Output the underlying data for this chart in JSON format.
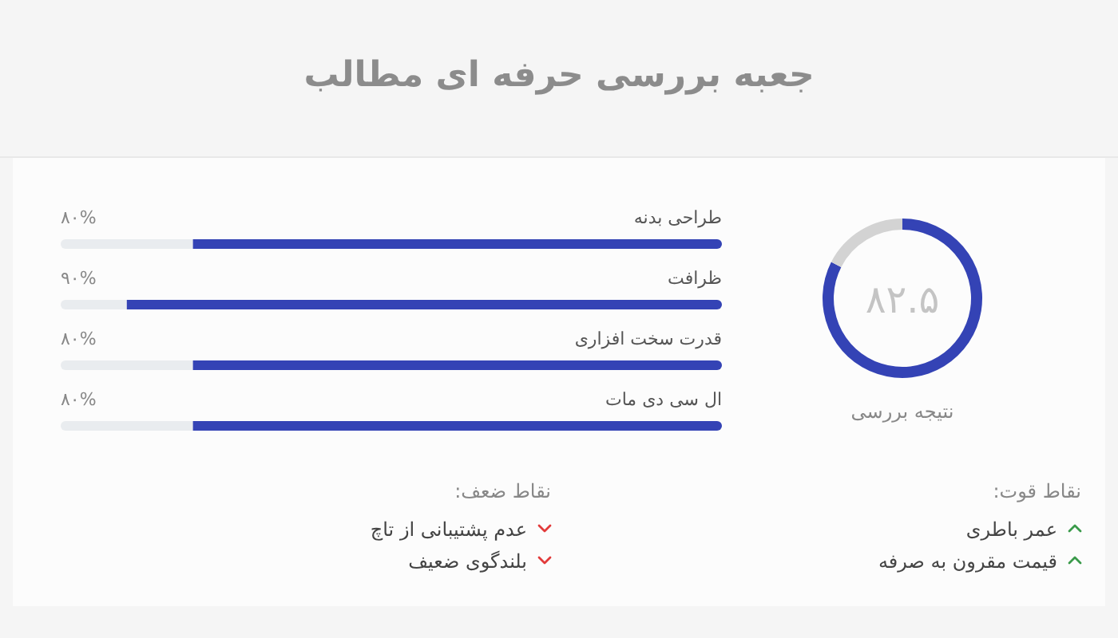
{
  "chart_data": [
    {
      "type": "bar",
      "title": "جعبه بررسی حرفه ای مطالب",
      "orientation": "horizontal",
      "categories": [
        "طراحی بدنه",
        "ظرافت",
        "قدرت سخت افزاری",
        "ال سی دی مات"
      ],
      "values": [
        80,
        90,
        80,
        80
      ],
      "color": "#3443b5",
      "xlim": [
        100,
        0
      ],
      "tick_labels": "y",
      "value_labels": [
        "۸۰%",
        "۹۰%",
        "۸۰%",
        "۸۰%"
      ]
    },
    {
      "type": "donut",
      "title": "نتیجه بررسی",
      "categories": [
        null,
        null
      ],
      "values": [
        82.5,
        17.5
      ],
      "colors": [
        "#3443b5",
        "#d3d3d3"
      ],
      "value_labels": [
        "۸۲.۵",
        null
      ]
    },
    {
      "type": "other",
      "title": "نقاط قوت:",
      "annotations": [
        "عمر باطری",
        "قیمت مقرون به صرفه"
      ]
    },
    {
      "type": "other",
      "title": "نقاط ضعف:",
      "annotations": [
        "عدم پشتیبانی از تاچ",
        "بلندگوی ضعیف"
      ]
    }
  ]
}
